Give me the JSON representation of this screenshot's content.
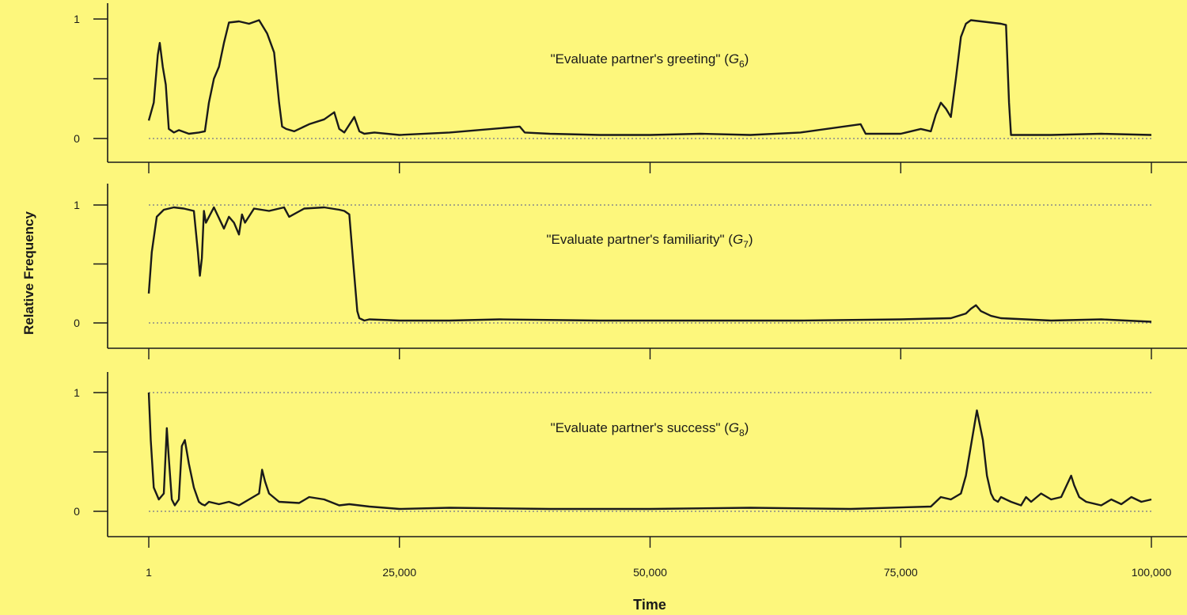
{
  "chart_data": {
    "type": "line",
    "ylabel": "Relative Frequency",
    "xlabel": "Time",
    "xlim": [
      1,
      100000
    ],
    "x_ticks": [
      1,
      25000,
      50000,
      75000,
      100000
    ],
    "x_tick_labels": [
      "1",
      "25,000",
      "50,000",
      "75,000",
      "100,000"
    ],
    "colors": {
      "background": "#fdf77c",
      "line": "#1a1a1a",
      "reference": "#8a8a8a"
    },
    "panels": [
      {
        "annotation": "\"Evaluate partner's greeting\"",
        "annotation_var": "G",
        "annotation_sub": "6",
        "ylim": [
          0,
          1
        ],
        "y_ticks": [
          0,
          0.5,
          1
        ],
        "y_tick_labels": [
          "0",
          "",
          "1"
        ],
        "reference_lines": [
          0
        ],
        "x": [
          1,
          500,
          900,
          1100,
          1400,
          1700,
          2000,
          2500,
          3000,
          4000,
          5000,
          5600,
          6000,
          6500,
          7000,
          7500,
          8000,
          9000,
          10000,
          11000,
          11800,
          12500,
          13000,
          13300,
          13700,
          14500,
          16000,
          17500,
          18500,
          19000,
          19500,
          20500,
          21000,
          21500,
          22500,
          25000,
          30000,
          37000,
          37500,
          40000,
          45000,
          50000,
          55000,
          60000,
          65000,
          71000,
          71500,
          75000,
          77000,
          78000,
          78500,
          79000,
          79500,
          80000,
          80500,
          81000,
          81500,
          82000,
          83000,
          84000,
          85000,
          85500,
          85800,
          86000,
          90000,
          95000,
          100000
        ],
        "y": [
          0.15,
          0.3,
          0.7,
          0.8,
          0.6,
          0.45,
          0.08,
          0.05,
          0.07,
          0.04,
          0.05,
          0.06,
          0.3,
          0.5,
          0.6,
          0.8,
          0.97,
          0.98,
          0.96,
          0.99,
          0.88,
          0.72,
          0.3,
          0.1,
          0.08,
          0.06,
          0.12,
          0.16,
          0.22,
          0.08,
          0.05,
          0.18,
          0.06,
          0.04,
          0.05,
          0.03,
          0.05,
          0.1,
          0.05,
          0.04,
          0.03,
          0.03,
          0.04,
          0.03,
          0.05,
          0.12,
          0.04,
          0.04,
          0.08,
          0.06,
          0.2,
          0.3,
          0.25,
          0.18,
          0.5,
          0.85,
          0.96,
          0.99,
          0.98,
          0.97,
          0.96,
          0.95,
          0.3,
          0.03,
          0.03,
          0.04,
          0.03
        ]
      },
      {
        "annotation": "\"Evaluate partner's familiarity\"",
        "annotation_var": "G",
        "annotation_sub": "7",
        "ylim": [
          0,
          1
        ],
        "y_ticks": [
          0,
          0.5,
          1
        ],
        "y_tick_labels": [
          "0",
          "",
          "1"
        ],
        "reference_lines": [
          0,
          1
        ],
        "x": [
          1,
          300,
          800,
          1500,
          2500,
          3500,
          4500,
          4900,
          5100,
          5300,
          5500,
          5700,
          6500,
          7500,
          8000,
          8500,
          9000,
          9300,
          9600,
          10500,
          12000,
          13500,
          14000,
          15500,
          17500,
          19000,
          19500,
          20000,
          20400,
          20800,
          21000,
          21500,
          22000,
          25000,
          30000,
          35000,
          45000,
          55000,
          65000,
          75000,
          80000,
          81500,
          82000,
          82500,
          83000,
          84000,
          85000,
          90000,
          95000,
          100000
        ],
        "y": [
          0.25,
          0.6,
          0.9,
          0.96,
          0.98,
          0.97,
          0.95,
          0.6,
          0.4,
          0.55,
          0.95,
          0.85,
          0.98,
          0.8,
          0.9,
          0.85,
          0.75,
          0.92,
          0.85,
          0.97,
          0.95,
          0.98,
          0.9,
          0.97,
          0.98,
          0.96,
          0.95,
          0.92,
          0.5,
          0.1,
          0.04,
          0.02,
          0.03,
          0.02,
          0.02,
          0.03,
          0.02,
          0.02,
          0.02,
          0.03,
          0.04,
          0.08,
          0.12,
          0.15,
          0.1,
          0.06,
          0.04,
          0.02,
          0.03,
          0.01
        ]
      },
      {
        "annotation": "\"Evaluate partner's success\"",
        "annotation_var": "G",
        "annotation_sub": "8",
        "ylim": [
          0,
          1
        ],
        "y_ticks": [
          0,
          0.5,
          1
        ],
        "y_tick_labels": [
          "0",
          "",
          "1"
        ],
        "reference_lines": [
          0,
          1
        ],
        "x": [
          1,
          200,
          500,
          1000,
          1500,
          1800,
          2000,
          2300,
          2600,
          3000,
          3300,
          3600,
          4000,
          4500,
          5000,
          5300,
          5600,
          6000,
          7000,
          8000,
          9000,
          10000,
          11000,
          11300,
          11600,
          12000,
          13000,
          15000,
          16000,
          17500,
          19000,
          20000,
          22000,
          25000,
          30000,
          40000,
          50000,
          60000,
          70000,
          78000,
          78500,
          79000,
          80000,
          81000,
          81500,
          82000,
          82600,
          83200,
          83600,
          84000,
          84300,
          84700,
          85000,
          86000,
          87000,
          87500,
          88000,
          89000,
          90000,
          91000,
          92000,
          92300,
          92800,
          93500,
          95000,
          96000,
          97000,
          98000,
          99000,
          100000
        ],
        "y": [
          1.0,
          0.6,
          0.2,
          0.1,
          0.15,
          0.7,
          0.45,
          0.1,
          0.05,
          0.1,
          0.55,
          0.6,
          0.4,
          0.2,
          0.08,
          0.06,
          0.05,
          0.08,
          0.06,
          0.08,
          0.05,
          0.1,
          0.15,
          0.35,
          0.25,
          0.15,
          0.08,
          0.07,
          0.12,
          0.1,
          0.05,
          0.06,
          0.04,
          0.02,
          0.03,
          0.02,
          0.02,
          0.03,
          0.02,
          0.04,
          0.08,
          0.12,
          0.1,
          0.15,
          0.3,
          0.55,
          0.85,
          0.6,
          0.3,
          0.15,
          0.1,
          0.08,
          0.12,
          0.08,
          0.05,
          0.12,
          0.08,
          0.15,
          0.1,
          0.12,
          0.3,
          0.22,
          0.12,
          0.08,
          0.05,
          0.1,
          0.06,
          0.12,
          0.08,
          0.1
        ]
      }
    ]
  }
}
